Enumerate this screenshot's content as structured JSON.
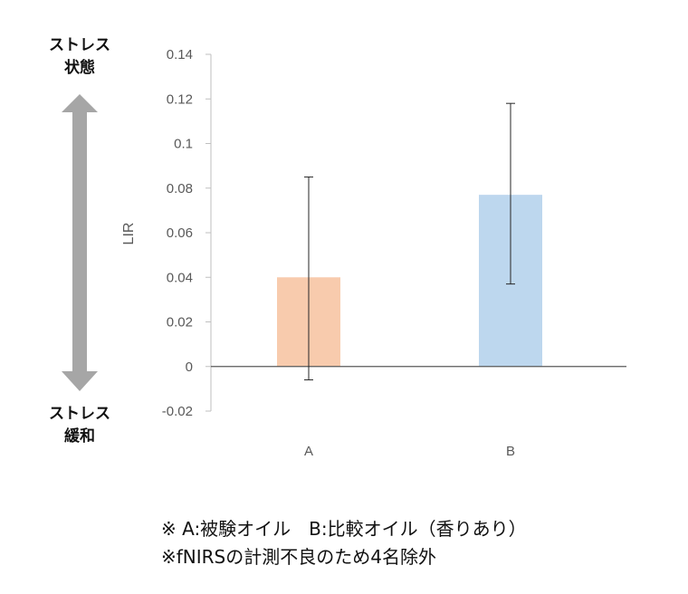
{
  "chart_data": {
    "type": "bar",
    "categories": [
      "A",
      "B"
    ],
    "values": [
      0.04,
      0.077
    ],
    "error_bars": [
      {
        "low": -0.006,
        "high": 0.085
      },
      {
        "low": 0.037,
        "high": 0.118
      }
    ],
    "colors": [
      "#f8cbad",
      "#bdd7ee"
    ],
    "ylabel": "LIR",
    "ylim": [
      -0.02,
      0.14
    ],
    "yticks": [
      -0.02,
      0,
      0.02,
      0.04,
      0.06,
      0.08,
      0.1,
      0.12,
      0.14
    ],
    "ytick_labels": [
      "-0.02",
      "0",
      "0.02",
      "0.04",
      "0.06",
      "0.08",
      "0.1",
      "0.12",
      "0.14"
    ],
    "grid": false,
    "legend": "none"
  },
  "scale_indicator": {
    "top_label_line1": "ストレス",
    "top_label_line2": "状態",
    "bottom_label_line1": "ストレス",
    "bottom_label_line2": "緩和",
    "arrow_color": "#a6a6a6"
  },
  "notes": {
    "line1": "※ A:被験オイル　B:比較オイル（香りあり）",
    "line2": "※fNIRSの計測不良のため4名除外"
  }
}
